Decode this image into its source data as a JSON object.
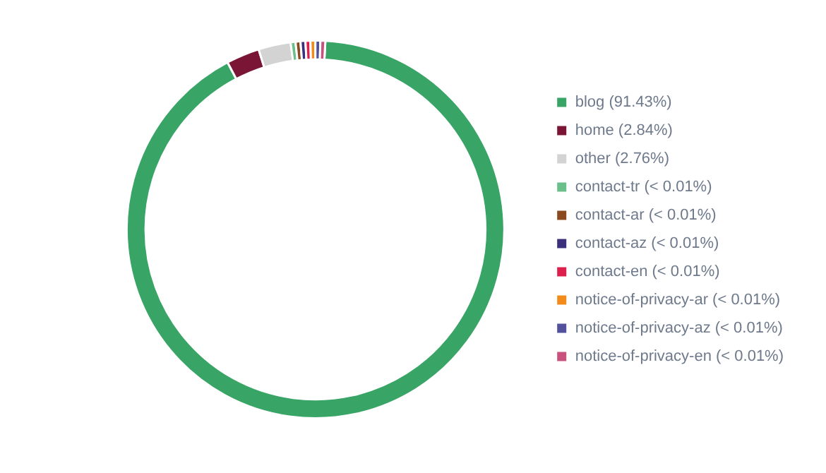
{
  "chart_data": {
    "type": "donut",
    "categories": [
      "blog (91.43%)",
      "home (2.84%)",
      "other (2.76%)",
      "contact-tr (< 0.01%)",
      "contact-ar (< 0.01%)",
      "contact-az (< 0.01%)",
      "contact-en (< 0.01%)",
      "notice-of-privacy-ar (< 0.01%)",
      "notice-of-privacy-az (< 0.01%)",
      "notice-of-privacy-en (< 0.01%)"
    ],
    "values": [
      91.43,
      2.84,
      2.76,
      0.42,
      0.42,
      0.42,
      0.42,
      0.42,
      0.42,
      0.42
    ],
    "colors": [
      "#38a466",
      "#7b1535",
      "#d3d3d3",
      "#6abf8a",
      "#8b4a1e",
      "#3a2f7a",
      "#dc1f4d",
      "#f28b1c",
      "#54519c",
      "#c9517d"
    ],
    "legend": "right"
  }
}
